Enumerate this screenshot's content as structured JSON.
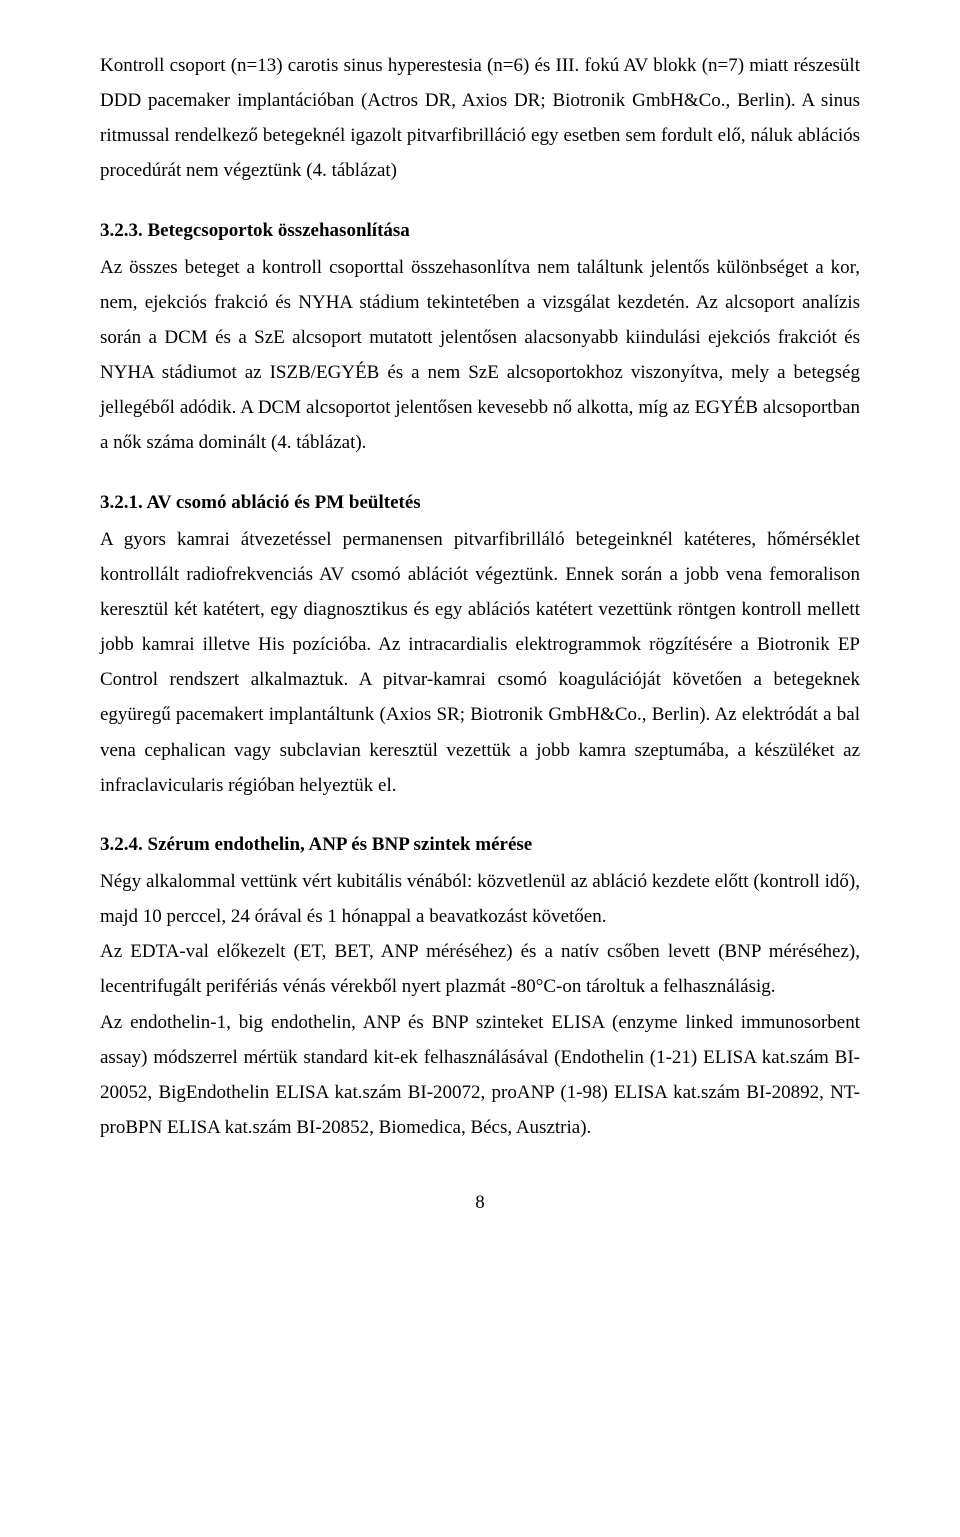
{
  "p1": "Kontroll csoport (n=13) carotis sinus hyperestesia (n=6) és III. fokú AV blokk (n=7) miatt részesült DDD pacemaker implantációban (Actros DR, Axios DR; Biotronik GmbH&Co., Berlin). A sinus ritmussal rendelkező betegeknél igazolt pitvarfibrilláció egy esetben sem fordult elő, náluk ablációs procedúrát nem végeztünk (4. táblázat)",
  "h1": "3.2.3. Betegcsoportok összehasonlítása",
  "p2": "Az összes beteget a kontroll csoporttal összehasonlítva nem találtunk jelentős különbséget a kor, nem, ejekciós frakció és NYHA stádium tekintetében a vizsgálat kezdetén. Az alcsoport analízis során a DCM és a SzE alcsoport mutatott jelentősen alacsonyabb kiindulási ejekciós frakciót és NYHA stádiumot az ISZB/EGYÉB és a nem SzE alcsoportokhoz viszonyítva, mely a betegség jellegéből adódik. A DCM alcsoportot jelentősen kevesebb nő alkotta, míg az EGYÉB alcsoportban a nők száma dominált (4. táblázat).",
  "h2": "3.2.1. AV csomó abláció és PM beültetés",
  "p3": "A gyors kamrai átvezetéssel permanensen pitvarfibrilláló betegeinknél katéteres, hőmérséklet kontrollált radiofrekvenciás AV csomó ablációt végeztünk. Ennek során a jobb vena femoralison keresztül két katétert, egy diagnosztikus és egy ablációs katétert vezettünk röntgen kontroll mellett jobb kamrai illetve His pozícióba. Az intracardialis elektrogrammok rögzítésére a Biotronik EP Control rendszert alkalmaztuk. A pitvar-kamrai csomó koagulációját követően a betegeknek együregű pacemakert implantáltunk (Axios SR; Biotronik GmbH&Co., Berlin). Az elektródát a bal vena cephalican vagy subclavian keresztül vezettük a jobb kamra szeptumába, a készüléket az infraclavicularis régióban helyeztük el.",
  "h3": "3.2.4. Szérum endothelin, ANP és BNP szintek mérése",
  "p4": "Négy alkalommal vettünk vért kubitális vénából: közvetlenül az abláció kezdete előtt (kontroll idő), majd 10 perccel, 24 órával és 1 hónappal a beavatkozást követően.",
  "p5": "Az EDTA-val előkezelt (ET, BET, ANP méréséhez) és a natív csőben levett (BNP méréséhez), lecentrifugált perifériás vénás vérekből nyert plazmát -80°C-on tároltuk a felhasználásig.",
  "p6": "Az endothelin-1, big endothelin, ANP és BNP szinteket ELISA (enzyme linked immunosorbent assay) módszerrel mértük standard kit-ek felhasználásával (Endothelin (1-21) ELISA kat.szám BI-20052, BigEndothelin ELISA kat.szám BI-20072, proANP (1-98) ELISA kat.szám BI-20892, NT-proBPN ELISA kat.szám BI-20852, Biomedica, Bécs, Ausztria).",
  "pagenum": "8"
}
